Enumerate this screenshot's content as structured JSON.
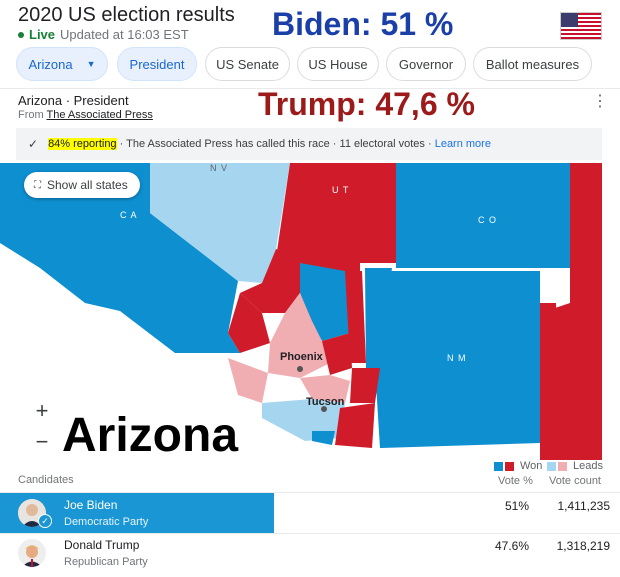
{
  "header": {
    "title": "2020 US election results",
    "live_label": "Live",
    "updated": "Updated at 16:03 EST"
  },
  "overlays": {
    "biden": "Biden: 51 %",
    "trump": "Trump: 47,6 %",
    "state_big": "Arizona"
  },
  "chips": {
    "state": "Arizona",
    "president": "President",
    "senate": "US Senate",
    "house": "US House",
    "governor": "Governor",
    "ballot": "Ballot measures"
  },
  "card": {
    "title": "Arizona · President",
    "source_prefix": "From ",
    "source_link": "The Associated Press",
    "reporting": "84% reporting",
    "status_text": " · The Associated Press has called this race · 11 electoral votes · ",
    "learn_more": "Learn more"
  },
  "map": {
    "show_all": "Show all states",
    "zoom_in": "+",
    "zoom_out": "−",
    "labels": {
      "nv": "N V",
      "ut": "U T",
      "ca": "C A",
      "co": "C O",
      "nm": "N M",
      "phoenix": "Phoenix",
      "tucson": "Tucson"
    },
    "colors": {
      "dem_won": "#0e8fd0",
      "dem_leads": "#a6d6ef",
      "rep_won": "#d01c2a",
      "rep_leads": "#f0aeb2"
    }
  },
  "legend": {
    "won": "Won",
    "leads": "Leads"
  },
  "table": {
    "candidates_label": "Candidates",
    "vote_pct_label": "Vote %",
    "vote_count_label": "Vote count",
    "rows": [
      {
        "name": "Joe Biden",
        "party": "Democratic Party",
        "pct": "51%",
        "count": "1,411,235",
        "winner": true
      },
      {
        "name": "Donald Trump",
        "party": "Republican Party",
        "pct": "47.6%",
        "count": "1,318,219",
        "winner": false
      }
    ]
  }
}
